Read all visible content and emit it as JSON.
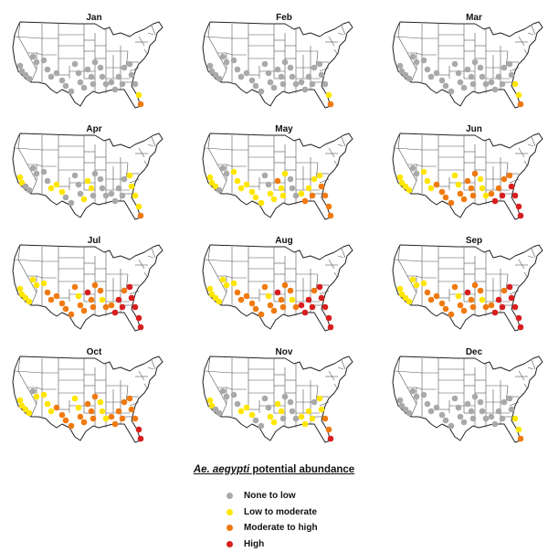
{
  "legend": {
    "title_species": "Ae. aegypti",
    "title_rest": " potential abundance",
    "items": [
      {
        "label": "None to low",
        "color": "#a9a9a9"
      },
      {
        "label": "Low to moderate",
        "color": "#ffe600"
      },
      {
        "label": "Moderate to high",
        "color": "#f07a10"
      },
      {
        "label": "High",
        "color": "#d81e1e"
      }
    ]
  },
  "panels": [
    {
      "month": "Jan",
      "levels": [
        0,
        0,
        0,
        0,
        0,
        0,
        0,
        0,
        0,
        0,
        0,
        0,
        0,
        0,
        0,
        0,
        0,
        0,
        0,
        0,
        0,
        0,
        0,
        0,
        0,
        0,
        0,
        0,
        0,
        0,
        0,
        0,
        1,
        2
      ]
    },
    {
      "month": "Feb",
      "levels": [
        0,
        0,
        0,
        0,
        0,
        0,
        0,
        0,
        0,
        0,
        0,
        0,
        0,
        0,
        0,
        0,
        0,
        0,
        0,
        0,
        0,
        0,
        0,
        0,
        0,
        0,
        0,
        0,
        0,
        0,
        0,
        0,
        1,
        2
      ]
    },
    {
      "month": "Mar",
      "levels": [
        0,
        0,
        0,
        0,
        0,
        0,
        0,
        0,
        0,
        0,
        0,
        0,
        0,
        0,
        0,
        0,
        0,
        0,
        0,
        0,
        0,
        0,
        0,
        0,
        0,
        0,
        0,
        0,
        0,
        0,
        0,
        1,
        1,
        2
      ]
    },
    {
      "month": "Apr",
      "levels": [
        1,
        1,
        0,
        0,
        0,
        0,
        0,
        0,
        1,
        1,
        1,
        0,
        0,
        0,
        0,
        0,
        1,
        1,
        1,
        0,
        0,
        0,
        0,
        0,
        0,
        0,
        0,
        0,
        0,
        1,
        1,
        1,
        1,
        2
      ]
    },
    {
      "month": "May",
      "levels": [
        1,
        1,
        1,
        0,
        0,
        0,
        1,
        1,
        1,
        1,
        1,
        1,
        1,
        0,
        0,
        1,
        1,
        2,
        1,
        1,
        1,
        0,
        0,
        0,
        1,
        2,
        1,
        2,
        1,
        1,
        2,
        2,
        2,
        2
      ]
    },
    {
      "month": "Jun",
      "levels": [
        1,
        1,
        1,
        1,
        0,
        0,
        1,
        1,
        1,
        2,
        2,
        2,
        2,
        1,
        1,
        2,
        2,
        2,
        2,
        2,
        2,
        1,
        1,
        1,
        2,
        3,
        2,
        3,
        2,
        2,
        3,
        3,
        3,
        3
      ]
    },
    {
      "month": "Jul",
      "levels": [
        1,
        1,
        1,
        1,
        1,
        1,
        1,
        2,
        2,
        2,
        2,
        2,
        2,
        2,
        1,
        2,
        2,
        3,
        2,
        2,
        2,
        2,
        1,
        2,
        2,
        3,
        3,
        3,
        2,
        3,
        3,
        3,
        3,
        3
      ]
    },
    {
      "month": "Aug",
      "levels": [
        1,
        1,
        1,
        1,
        1,
        1,
        1,
        2,
        2,
        2,
        2,
        2,
        2,
        2,
        1,
        2,
        2,
        3,
        2,
        2,
        2,
        2,
        1,
        2,
        3,
        3,
        3,
        3,
        2,
        3,
        3,
        3,
        3,
        3
      ]
    },
    {
      "month": "Sep",
      "levels": [
        1,
        1,
        1,
        1,
        1,
        1,
        1,
        2,
        2,
        2,
        2,
        2,
        2,
        2,
        1,
        2,
        2,
        3,
        2,
        2,
        2,
        2,
        1,
        2,
        2,
        3,
        3,
        3,
        2,
        3,
        3,
        3,
        3,
        3
      ]
    },
    {
      "month": "Oct",
      "levels": [
        1,
        1,
        1,
        1,
        0,
        1,
        1,
        1,
        1,
        2,
        2,
        2,
        2,
        1,
        1,
        2,
        2,
        2,
        2,
        2,
        2,
        1,
        1,
        1,
        2,
        2,
        2,
        2,
        2,
        2,
        2,
        2,
        3,
        3
      ]
    },
    {
      "month": "Nov",
      "levels": [
        1,
        1,
        0,
        0,
        0,
        0,
        0,
        0,
        1,
        1,
        1,
        0,
        0,
        0,
        0,
        1,
        1,
        1,
        1,
        0,
        0,
        0,
        0,
        0,
        1,
        1,
        1,
        1,
        0,
        1,
        1,
        2,
        2,
        3
      ]
    },
    {
      "month": "Dec",
      "levels": [
        0,
        0,
        0,
        0,
        0,
        0,
        0,
        0,
        0,
        0,
        0,
        0,
        0,
        0,
        0,
        0,
        0,
        0,
        0,
        0,
        0,
        0,
        0,
        0,
        0,
        0,
        0,
        0,
        0,
        0,
        0,
        1,
        1,
        2
      ]
    }
  ]
}
